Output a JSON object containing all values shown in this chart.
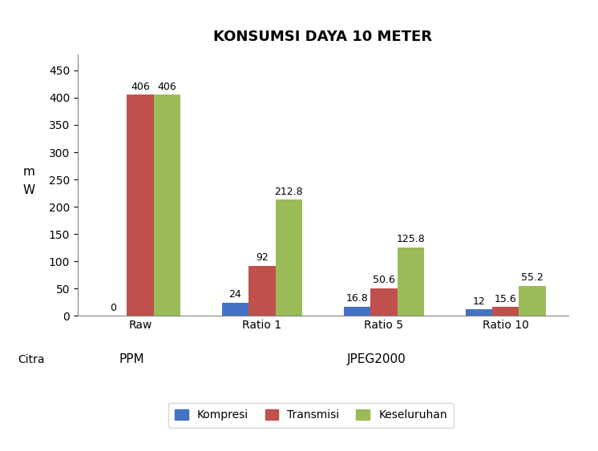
{
  "title": "KONSUMSI DAYA 10 METER",
  "categories": [
    "Raw",
    "Ratio 1",
    "Ratio 5",
    "Ratio 10"
  ],
  "series": {
    "Kompresi": [
      0,
      24,
      16.8,
      12
    ],
    "Transmisi": [
      406,
      92,
      50.6,
      15.6
    ],
    "Keseluruhan": [
      406,
      212.8,
      125.8,
      55.2
    ]
  },
  "colors": {
    "Kompresi": "#4472C4",
    "Transmisi": "#C0504D",
    "Keseluruhan": "#9BBB59"
  },
  "ylabel_line1": "m",
  "ylabel_line2": "W",
  "xlabel_main": "Citra",
  "xlabel_ppm": "PPM",
  "xlabel_jpeg": "JPEG2000",
  "ylim": [
    0,
    480
  ],
  "yticks": [
    0,
    50,
    100,
    150,
    200,
    250,
    300,
    350,
    400,
    450
  ],
  "bar_width": 0.22,
  "title_fontsize": 13,
  "label_fontsize": 9,
  "tick_fontsize": 10,
  "legend_fontsize": 10
}
